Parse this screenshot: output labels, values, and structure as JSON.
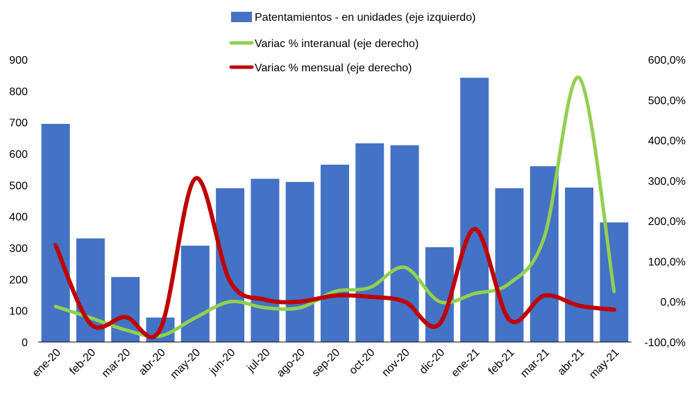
{
  "chart_data": {
    "type": "bar+line",
    "categories": [
      "ene-20",
      "feb-20",
      "mar-20",
      "abr-20",
      "may-20",
      "jun-20",
      "jul-20",
      "ago-20",
      "sep-20",
      "oct-20",
      "nov-20",
      "dic-20",
      "ene-21",
      "feb-21",
      "mar-21",
      "abr-21",
      "may-21"
    ],
    "left_axis": {
      "ylim": [
        0,
        900
      ],
      "ticks": [
        "0",
        "100",
        "200",
        "300",
        "400",
        "500",
        "600",
        "700",
        "800",
        "900"
      ]
    },
    "right_axis": {
      "ylim": [
        -100,
        600
      ],
      "ticks": [
        "-100,0%",
        "0,0%",
        "100,0%",
        "200,0%",
        "300,0%",
        "400,0%",
        "500,0%",
        "600,0%"
      ]
    },
    "series": [
      {
        "name": "Patentamientos - en unidades (eje izquierdo)",
        "type": "bar",
        "axis": "left",
        "color": "#4472C4",
        "values": [
          695,
          330,
          207,
          78,
          307,
          490,
          520,
          510,
          565,
          633,
          627,
          302,
          842,
          490,
          560,
          492,
          381
        ]
      },
      {
        "name": "Variac % interanual (eje derecho)",
        "type": "line",
        "axis": "right",
        "color": "#92D050",
        "values": [
          -12,
          -40,
          -70,
          -85,
          -40,
          0,
          -15,
          -15,
          25,
          35,
          85,
          0,
          20,
          45,
          160,
          555,
          25
        ]
      },
      {
        "name": "Variac % mensual (eje derecho)",
        "type": "line",
        "axis": "right",
        "color": "#C00000",
        "values": [
          140,
          -55,
          -38,
          -68,
          305,
          50,
          5,
          0,
          15,
          12,
          0,
          -55,
          180,
          -45,
          15,
          -10,
          -20
        ]
      }
    ]
  }
}
